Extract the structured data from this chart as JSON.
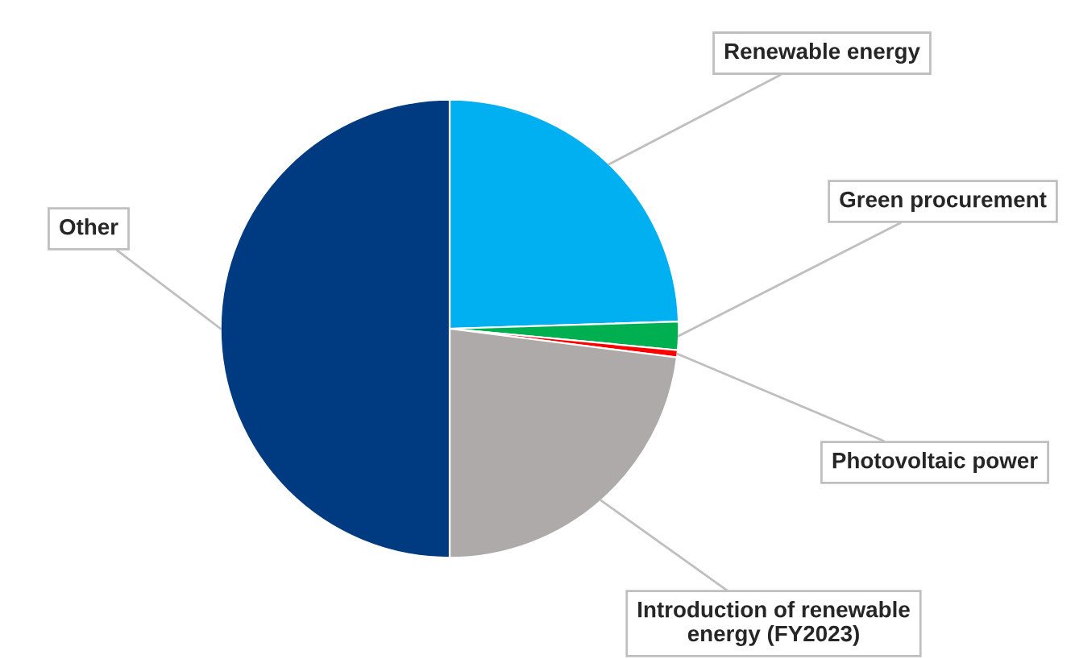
{
  "chart_data": {
    "type": "pie",
    "categories": [
      "Renewable energy",
      "Green procurement",
      "Photovoltaic power",
      "Introduction of renewable\nenergy (FY2023)",
      "Other"
    ],
    "values": [
      24.5,
      2,
      0.5,
      23,
      50
    ],
    "colors": [
      "#00b0f0",
      "#00b050",
      "#ff0000",
      "#aeaaaa",
      "#003a80"
    ],
    "legend": false
  }
}
